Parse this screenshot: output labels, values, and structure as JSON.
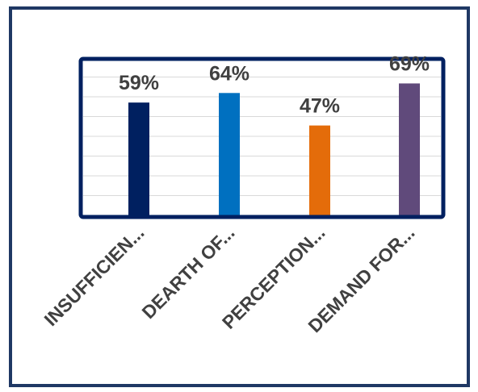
{
  "chart_data": {
    "type": "bar",
    "categories": [
      "INSUFFICIEN...",
      "DEARTH OF...",
      "PERCEPTION...",
      "DEMAND FOR..."
    ],
    "values": [
      59,
      64,
      47,
      69
    ],
    "data_labels": [
      "59%",
      "64%",
      "47%",
      "69%"
    ],
    "colors": [
      "#002060",
      "#0070c0",
      "#e46c0a",
      "#604a7b"
    ],
    "frame_color": "#1f3864",
    "plot_border_color": "#002060",
    "grid": true,
    "title": "",
    "xlabel": "",
    "ylabel": ""
  }
}
